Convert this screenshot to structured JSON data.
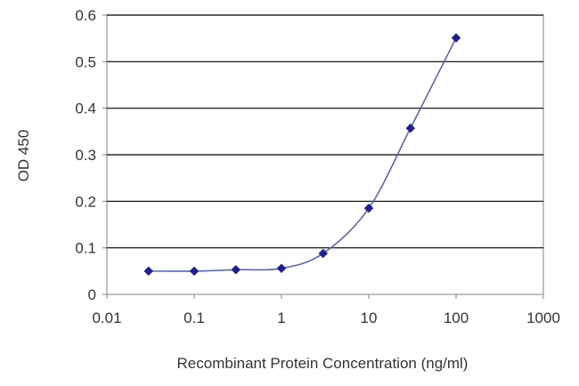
{
  "chart_data": {
    "type": "line",
    "title": "",
    "xlabel": "Recombinant Protein Concentration (ng/ml)",
    "ylabel": "OD 450",
    "xscale": "log",
    "xlim": [
      0.01,
      1000
    ],
    "ylim": [
      0,
      0.6
    ],
    "x_ticks": [
      "0.01",
      "0.1",
      "1",
      "10",
      "100",
      "1000"
    ],
    "y_ticks": [
      "0",
      "0.1",
      "0.2",
      "0.3",
      "0.4",
      "0.5",
      "0.6"
    ],
    "grid": "horizontal",
    "legend": "none",
    "series": [
      {
        "color": "#1f1f8f",
        "marker": "diamond",
        "x": [
          0.03,
          0.1,
          0.3,
          1,
          3,
          10,
          30,
          100
        ],
        "y": [
          0.05,
          0.05,
          0.053,
          0.056,
          0.088,
          0.185,
          0.357,
          0.551
        ]
      }
    ],
    "colors": {
      "plot_background": "#ffffff",
      "grid": "#000000",
      "line": "#5a66b8",
      "marker": "#1f1f8f",
      "frame": "#808080"
    }
  }
}
